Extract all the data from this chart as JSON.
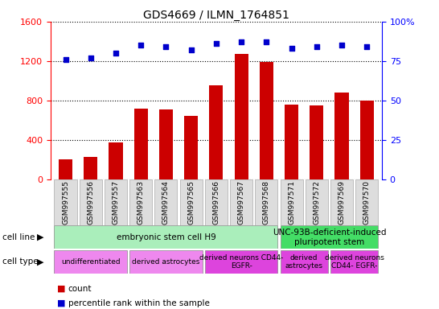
{
  "title": "GDS4669 / ILMN_1764851",
  "samples": [
    "GSM997555",
    "GSM997556",
    "GSM997557",
    "GSM997563",
    "GSM997564",
    "GSM997565",
    "GSM997566",
    "GSM997567",
    "GSM997568",
    "GSM997571",
    "GSM997572",
    "GSM997569",
    "GSM997570"
  ],
  "counts": [
    200,
    230,
    370,
    720,
    710,
    640,
    950,
    1270,
    1190,
    760,
    750,
    880,
    800
  ],
  "percentiles": [
    76,
    77,
    80,
    85,
    84,
    82,
    86,
    87,
    87,
    83,
    84,
    85,
    84
  ],
  "bar_color": "#cc0000",
  "dot_color": "#0000cc",
  "ylim_left": [
    0,
    1600
  ],
  "ylim_right": [
    0,
    100
  ],
  "yticks_left": [
    0,
    400,
    800,
    1200,
    1600
  ],
  "yticks_right": [
    0,
    25,
    50,
    75,
    100
  ],
  "cell_line_groups": [
    {
      "label": "embryonic stem cell H9",
      "start": 0,
      "end": 8,
      "color": "#aaeebb"
    },
    {
      "label": "UNC-93B-deficient-induced\npluripotent stem",
      "start": 9,
      "end": 12,
      "color": "#44dd66"
    }
  ],
  "cell_type_groups": [
    {
      "label": "undifferentiated",
      "start": 0,
      "end": 2,
      "color": "#ee88ee"
    },
    {
      "label": "derived astrocytes",
      "start": 3,
      "end": 5,
      "color": "#ee88ee"
    },
    {
      "label": "derived neurons CD44-\nEGFR-",
      "start": 6,
      "end": 8,
      "color": "#dd44dd"
    },
    {
      "label": "derived\nastrocytes",
      "start": 9,
      "end": 10,
      "color": "#dd44dd"
    },
    {
      "label": "derived neurons\nCD44- EGFR-",
      "start": 11,
      "end": 12,
      "color": "#dd44dd"
    }
  ],
  "legend_count_color": "#cc0000",
  "legend_pct_color": "#0000cc",
  "sample_box_color": "#dddddd",
  "sample_box_edge": "#aaaaaa"
}
